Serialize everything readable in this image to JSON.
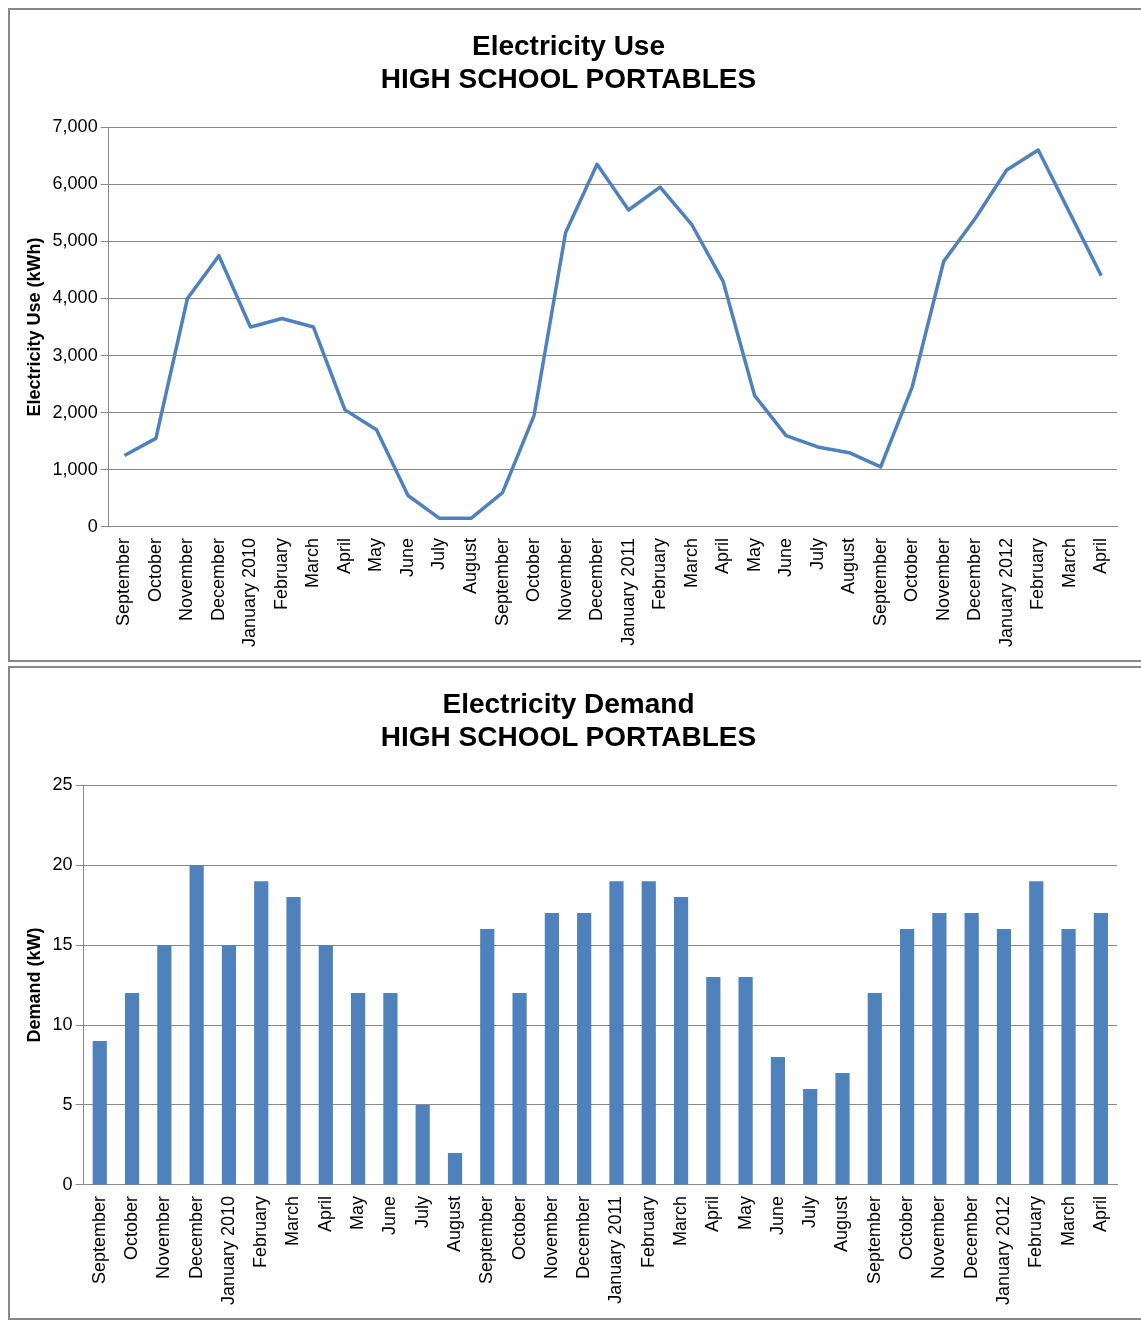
{
  "chart_data": [
    {
      "type": "line",
      "title": "Electricity Use\nHIGH SCHOOL PORTABLES",
      "ylabel": "Electricity Use (kWh)",
      "categories": [
        "September",
        "October",
        "November",
        "December",
        "January 2010",
        "February",
        "March",
        "April",
        "May",
        "June",
        "July",
        "August",
        "September",
        "October",
        "November",
        "December",
        "January 2011",
        "February",
        "March",
        "April",
        "May",
        "June",
        "July",
        "August",
        "September",
        "October",
        "November",
        "December",
        "January 2012",
        "February",
        "March",
        "April"
      ],
      "series": [
        {
          "color": "#4f81bd",
          "values": [
            1250,
            1550,
            4000,
            4750,
            3500,
            3650,
            3500,
            2050,
            1700,
            550,
            150,
            150,
            600,
            1950,
            5150,
            6350,
            5550,
            5950,
            5300,
            4300,
            2300,
            1600,
            1400,
            1300,
            1050,
            2450,
            4650,
            5400,
            6250,
            6600,
            5500,
            4400
          ]
        }
      ],
      "ylim": [
        0,
        7000
      ],
      "yticks": [
        {
          "value": 0,
          "label": "0"
        },
        {
          "value": 1000,
          "label": "1,000"
        },
        {
          "value": 2000,
          "label": "2,000"
        },
        {
          "value": 3000,
          "label": "3,000"
        },
        {
          "value": 4000,
          "label": "4,000"
        },
        {
          "value": 5000,
          "label": "5,000"
        },
        {
          "value": 6000,
          "label": "6,000"
        },
        {
          "value": 7000,
          "label": "7,000"
        }
      ],
      "grid": "y",
      "legend": false,
      "marker": "none",
      "line_style": "solid"
    },
    {
      "type": "bar",
      "title": "Electricity Demand\nHIGH SCHOOL PORTABLES",
      "ylabel": "Demand (kW)",
      "categories": [
        "September",
        "October",
        "November",
        "December",
        "January 2010",
        "February",
        "March",
        "April",
        "May",
        "June",
        "July",
        "August",
        "September",
        "October",
        "November",
        "December",
        "January 2011",
        "February",
        "March",
        "April",
        "May",
        "June",
        "July",
        "August",
        "September",
        "October",
        "November",
        "December",
        "January 2012",
        "February",
        "March",
        "April"
      ],
      "series": [
        {
          "color": "#4f81bd",
          "values": [
            9,
            12,
            15,
            20,
            15,
            19,
            18,
            15,
            12,
            12,
            5,
            2,
            16,
            12,
            17,
            17,
            19,
            19,
            18,
            13,
            13,
            8,
            6,
            7,
            12,
            16,
            17,
            17,
            16,
            19,
            16,
            17
          ]
        }
      ],
      "ylim": [
        0,
        25
      ],
      "yticks": [
        0,
        5,
        10,
        15,
        20,
        25
      ],
      "grid": "y",
      "legend": false
    }
  ]
}
